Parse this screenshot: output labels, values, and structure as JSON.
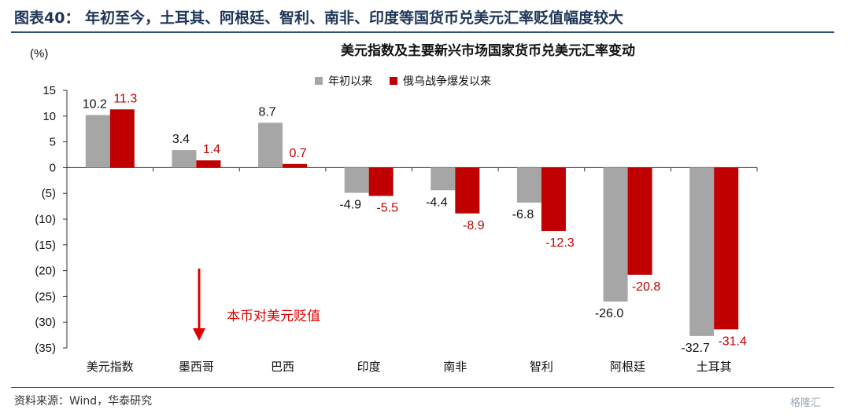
{
  "header": {
    "title": "图表40： 年初至今，土耳其、阿根廷、智利、南非、印度等国货币兑美元汇率贬值幅度较大"
  },
  "footer": {
    "source": "资料来源：Wind，华泰研究",
    "watermark": "格隆汇"
  },
  "chart_data": {
    "type": "bar",
    "title": "美元指数及主要新兴市场国家货币兑美元汇率变动",
    "unit_label": "(%)",
    "categories": [
      "美元指数",
      "墨西哥",
      "巴西",
      "印度",
      "南非",
      "智利",
      "阿根廷",
      "土耳其"
    ],
    "series": [
      {
        "name": "年初以来",
        "color": "#a6a6a6",
        "label_color": "#111111",
        "values": [
          10.2,
          3.4,
          8.7,
          -4.9,
          -4.4,
          -6.8,
          -26.0,
          -32.7
        ],
        "labels": [
          "10.2",
          "3.4",
          "8.7",
          "-4.9",
          "-4.4",
          "-6.8",
          "-26.0",
          "-32.7"
        ]
      },
      {
        "name": "俄乌战争爆发以来",
        "color": "#c00000",
        "label_color": "#c00000",
        "values": [
          11.3,
          1.4,
          0.7,
          -5.5,
          -8.9,
          -12.3,
          -20.8,
          -31.4
        ],
        "labels": [
          "11.3",
          "1.4",
          "0.7",
          "-5.5",
          "-8.9",
          "-12.3",
          "-20.8",
          "-31.4"
        ]
      }
    ],
    "ylim": [
      -35,
      15
    ],
    "yticks": [
      15,
      10,
      5,
      0,
      -5,
      -10,
      -15,
      -20,
      -25,
      -30,
      -35
    ],
    "ytick_labels": [
      "15",
      "10",
      "5",
      "0",
      "(5)",
      "(10)",
      "(15)",
      "(20)",
      "(25)",
      "(30)",
      "(35)"
    ],
    "legend_position": "top-center",
    "grid": false,
    "annotation": {
      "text": "本币对美元贬值",
      "color": "#e00000"
    }
  }
}
